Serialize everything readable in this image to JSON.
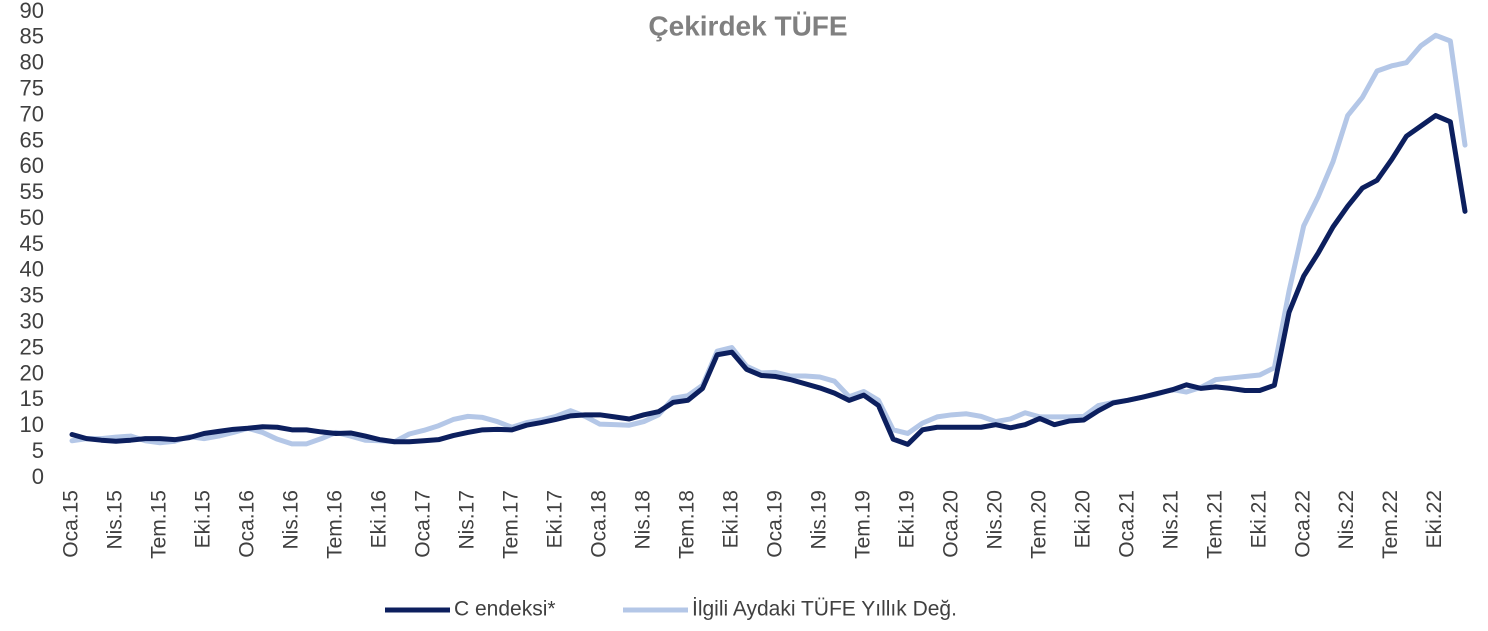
{
  "chart_data": {
    "type": "line",
    "title": "Çekirdek TÜFE",
    "categories": [
      "Oca.15",
      null,
      null,
      "Nis.15",
      null,
      null,
      "Tem.15",
      null,
      null,
      "Eki.15",
      null,
      null,
      "Oca.16",
      null,
      null,
      "Nis.16",
      null,
      null,
      "Tem.16",
      null,
      null,
      "Eki.16",
      null,
      null,
      "Oca.17",
      null,
      null,
      "Nis.17",
      null,
      null,
      "Tem.17",
      null,
      null,
      "Eki.17",
      null,
      null,
      "Oca.18",
      null,
      null,
      "Nis.18",
      null,
      null,
      "Tem.18",
      null,
      null,
      "Eki.18",
      null,
      null,
      "Oca.19",
      null,
      null,
      "Nis.19",
      null,
      null,
      "Tem.19",
      null,
      null,
      "Eki.19",
      null,
      null,
      "Oca.20",
      null,
      null,
      "Nis.20",
      null,
      null,
      "Tem.20",
      null,
      null,
      "Eki.20",
      null,
      null,
      "Oca.21",
      null,
      null,
      "Nis.21",
      null,
      null,
      "Tem.21",
      null,
      null,
      "Eki.21",
      null,
      null,
      "Oca.22",
      null,
      null,
      "Nis.22",
      null,
      null,
      "Tem.22",
      null,
      null,
      "Eki.22",
      null,
      null
    ],
    "series": [
      {
        "name": "C endeksi*",
        "color": "#0c1f5e",
        "values": [
          8.4,
          7.6,
          7.3,
          7.1,
          7.3,
          7.6,
          7.6,
          7.4,
          7.8,
          8.6,
          9.0,
          9.4,
          9.6,
          9.9,
          9.8,
          9.3,
          9.3,
          8.9,
          8.6,
          8.7,
          8.1,
          7.4,
          7.0,
          7.0,
          7.2,
          7.4,
          8.2,
          8.8,
          9.3,
          9.4,
          9.3,
          10.2,
          10.7,
          11.3,
          12.0,
          12.2,
          12.2,
          11.8,
          11.4,
          12.2,
          12.8,
          14.6,
          15.0,
          17.3,
          23.8,
          24.3,
          21.0,
          19.8,
          19.6,
          19.0,
          18.2,
          17.4,
          16.4,
          15.0,
          16.0,
          14.0,
          7.5,
          6.5,
          9.3,
          9.8,
          9.8,
          9.8,
          9.8,
          10.3,
          9.7,
          10.3,
          11.5,
          10.3,
          11.0,
          11.2,
          13.0,
          14.5,
          15.0,
          15.6,
          16.3,
          17.0,
          18.0,
          17.3,
          17.6,
          17.3,
          16.9,
          16.9,
          17.9,
          32.0,
          39.0,
          43.5,
          48.5,
          52.5,
          56.0,
          57.5,
          61.5,
          66.0,
          68.0,
          70.0,
          68.8,
          51.5
        ]
      },
      {
        "name": "İlgili Aydaki TÜFE Yıllık Değ.",
        "color": "#b4c7e7",
        "values": [
          7.2,
          7.6,
          7.6,
          7.9,
          8.1,
          7.2,
          6.8,
          7.1,
          8.0,
          7.6,
          8.1,
          8.8,
          9.6,
          8.8,
          7.5,
          6.6,
          6.6,
          7.6,
          8.8,
          8.1,
          7.3,
          7.2,
          7.0,
          8.5,
          9.2,
          10.1,
          11.3,
          11.9,
          11.7,
          10.9,
          9.8,
          10.7,
          11.2,
          11.9,
          13.0,
          11.9,
          10.4,
          10.3,
          10.2,
          10.9,
          12.2,
          15.4,
          15.9,
          17.9,
          24.5,
          25.2,
          21.6,
          20.3,
          20.4,
          19.7,
          19.7,
          19.5,
          18.7,
          15.7,
          16.7,
          15.0,
          9.3,
          8.6,
          10.6,
          11.8,
          12.2,
          12.4,
          11.9,
          10.9,
          11.4,
          12.6,
          11.8,
          11.8,
          11.8,
          11.9,
          14.0,
          14.6,
          15.0,
          15.6,
          16.2,
          17.1,
          16.6,
          17.5,
          19.0,
          19.3,
          19.6,
          19.9,
          21.3,
          36.1,
          48.7,
          54.4,
          61.1,
          70.0,
          73.5,
          78.6,
          79.6,
          80.2,
          83.5,
          85.5,
          84.4,
          64.3
        ]
      }
    ],
    "ylim": [
      0,
      90
    ],
    "yticks": [
      0,
      5,
      10,
      15,
      20,
      25,
      30,
      35,
      40,
      45,
      50,
      55,
      60,
      65,
      70,
      75,
      80,
      85,
      90
    ],
    "grid": false,
    "legend": "bottom"
  }
}
